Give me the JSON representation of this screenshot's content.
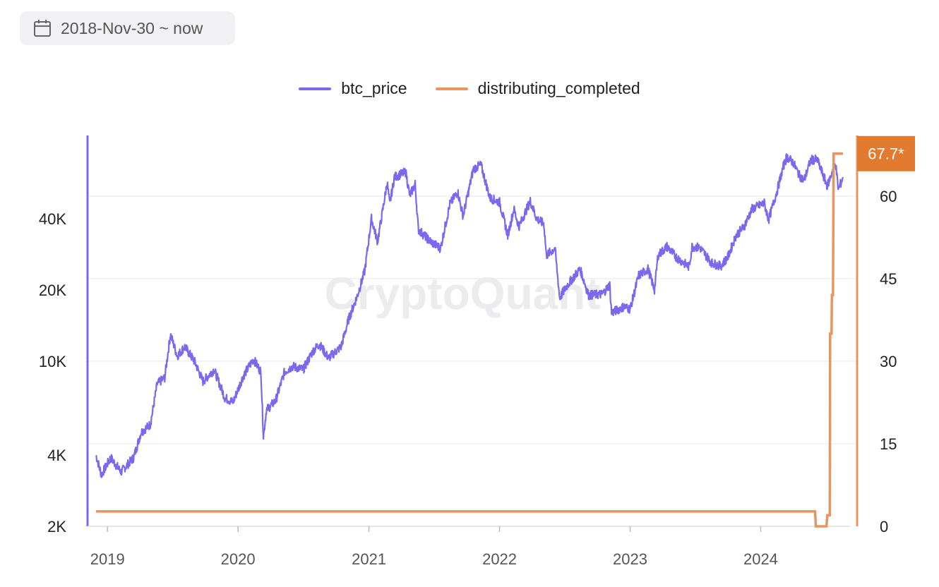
{
  "date_range": {
    "label": "2018-Nov-30 ~ now",
    "icon": "calendar-icon"
  },
  "watermark": "CryptoQuant",
  "colors": {
    "btc": "#7b68ee",
    "distributing": "#e8955f",
    "badge": "#e27a30",
    "grid": "#efeff2"
  },
  "chart_data": {
    "type": "line",
    "x_labels": [
      "2019",
      "2020",
      "2021",
      "2022",
      "2023",
      "2024"
    ],
    "left_axis": {
      "scale": "log",
      "ticks": [
        "2K",
        "4K",
        "10K",
        "20K",
        "40K"
      ],
      "range": [
        2000,
        90000
      ]
    },
    "right_axis": {
      "scale": "linear",
      "ticks": [
        "0",
        "15",
        "30",
        "45",
        "60"
      ],
      "range": [
        0,
        71
      ]
    },
    "last_value_badge": "67.7*",
    "series": [
      {
        "name": "btc_price",
        "axis": "left",
        "points": [
          [
            "2018-11-30",
            4000
          ],
          [
            "2018-12-15",
            3300
          ],
          [
            "2019-01-10",
            3900
          ],
          [
            "2019-02-08",
            3400
          ],
          [
            "2019-03-15",
            3900
          ],
          [
            "2019-04-05",
            5000
          ],
          [
            "2019-05-01",
            5400
          ],
          [
            "2019-05-20",
            8000
          ],
          [
            "2019-06-10",
            8500
          ],
          [
            "2019-06-26",
            13000
          ],
          [
            "2019-07-15",
            10500
          ],
          [
            "2019-08-05",
            11500
          ],
          [
            "2019-09-01",
            10000
          ],
          [
            "2019-09-25",
            8200
          ],
          [
            "2019-10-26",
            9200
          ],
          [
            "2019-11-25",
            7000
          ],
          [
            "2019-12-18",
            6700
          ],
          [
            "2020-01-15",
            8600
          ],
          [
            "2020-02-13",
            10200
          ],
          [
            "2020-03-05",
            9000
          ],
          [
            "2020-03-12",
            4800
          ],
          [
            "2020-03-20",
            6200
          ],
          [
            "2020-04-15",
            6800
          ],
          [
            "2020-05-10",
            9000
          ],
          [
            "2020-06-01",
            9500
          ],
          [
            "2020-07-01",
            9200
          ],
          [
            "2020-07-28",
            11000
          ],
          [
            "2020-08-15",
            11800
          ],
          [
            "2020-09-10",
            10300
          ],
          [
            "2020-10-15",
            11500
          ],
          [
            "2020-11-05",
            15000
          ],
          [
            "2020-11-30",
            19000
          ],
          [
            "2020-12-20",
            24000
          ],
          [
            "2021-01-08",
            40000
          ],
          [
            "2021-01-25",
            32000
          ],
          [
            "2021-02-21",
            57000
          ],
          [
            "2021-02-28",
            46000
          ],
          [
            "2021-03-13",
            60000
          ],
          [
            "2021-04-14",
            63000
          ],
          [
            "2021-04-25",
            50000
          ],
          [
            "2021-05-10",
            56000
          ],
          [
            "2021-05-19",
            36000
          ],
          [
            "2021-06-22",
            32000
          ],
          [
            "2021-07-20",
            30000
          ],
          [
            "2021-08-15",
            46000
          ],
          [
            "2021-09-06",
            52000
          ],
          [
            "2021-09-21",
            41000
          ],
          [
            "2021-10-20",
            65000
          ],
          [
            "2021-11-10",
            67500
          ],
          [
            "2021-12-05",
            49000
          ],
          [
            "2022-01-01",
            47000
          ],
          [
            "2022-01-24",
            34000
          ],
          [
            "2022-02-10",
            44000
          ],
          [
            "2022-02-24",
            37000
          ],
          [
            "2022-03-28",
            47500
          ],
          [
            "2022-04-15",
            40000
          ],
          [
            "2022-05-05",
            38000
          ],
          [
            "2022-05-12",
            28000
          ],
          [
            "2022-06-05",
            30000
          ],
          [
            "2022-06-18",
            18500
          ],
          [
            "2022-07-10",
            21000
          ],
          [
            "2022-08-14",
            24500
          ],
          [
            "2022-09-07",
            19000
          ],
          [
            "2022-10-15",
            19200
          ],
          [
            "2022-11-05",
            21000
          ],
          [
            "2022-11-10",
            16000
          ],
          [
            "2022-12-15",
            17000
          ],
          [
            "2023-01-01",
            16600
          ],
          [
            "2023-01-25",
            23000
          ],
          [
            "2023-02-20",
            24500
          ],
          [
            "2023-03-10",
            20000
          ],
          [
            "2023-03-20",
            28000
          ],
          [
            "2023-04-14",
            30500
          ],
          [
            "2023-05-10",
            27500
          ],
          [
            "2023-06-15",
            25000
          ],
          [
            "2023-06-23",
            30500
          ],
          [
            "2023-07-15",
            30200
          ],
          [
            "2023-08-17",
            26000
          ],
          [
            "2023-09-11",
            25200
          ],
          [
            "2023-10-01",
            27500
          ],
          [
            "2023-10-24",
            34000
          ],
          [
            "2023-11-15",
            37000
          ],
          [
            "2023-12-08",
            44000
          ],
          [
            "2024-01-11",
            46500
          ],
          [
            "2024-01-23",
            39500
          ],
          [
            "2024-02-15",
            52000
          ],
          [
            "2024-03-05",
            67000
          ],
          [
            "2024-03-14",
            73000
          ],
          [
            "2024-04-01",
            69000
          ],
          [
            "2024-04-18",
            61000
          ],
          [
            "2024-05-01",
            58000
          ],
          [
            "2024-05-20",
            71000
          ],
          [
            "2024-06-07",
            71000
          ],
          [
            "2024-07-05",
            55000
          ],
          [
            "2024-07-28",
            69000
          ],
          [
            "2024-08-05",
            53000
          ],
          [
            "2024-08-18",
            60000
          ]
        ]
      },
      {
        "name": "distributing_completed",
        "axis": "right",
        "points": [
          [
            "2018-11-30",
            2.7
          ],
          [
            "2024-06-01",
            2.7
          ],
          [
            "2024-06-03",
            0
          ],
          [
            "2024-07-03",
            0
          ],
          [
            "2024-07-05",
            2
          ],
          [
            "2024-07-12",
            2
          ],
          [
            "2024-07-13",
            35
          ],
          [
            "2024-07-17",
            35
          ],
          [
            "2024-07-18",
            42
          ],
          [
            "2024-07-21",
            42
          ],
          [
            "2024-07-23",
            67.7
          ],
          [
            "2024-08-18",
            67.7
          ]
        ]
      }
    ]
  }
}
